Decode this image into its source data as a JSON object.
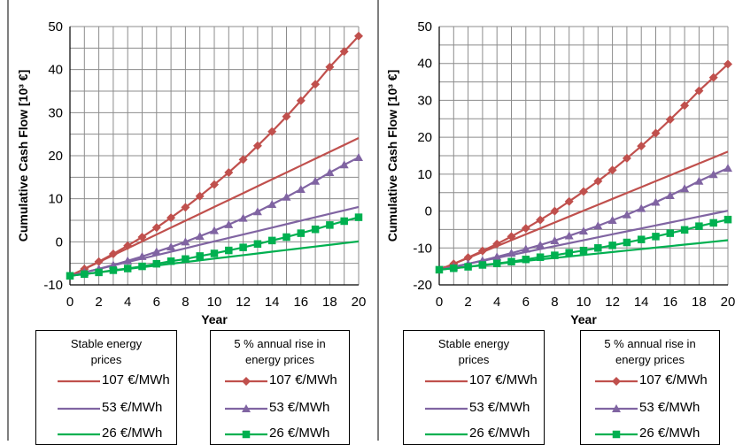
{
  "chart_data": [
    {
      "type": "line",
      "xlabel": "Year",
      "ylabel": "Cumulative Cash Flow [10³ €]",
      "xlim": [
        0,
        20
      ],
      "ylim": [
        -10,
        50
      ],
      "xticks": [
        0,
        2,
        4,
        6,
        8,
        10,
        12,
        14,
        16,
        18,
        20
      ],
      "yticks": [
        -10,
        0,
        10,
        20,
        30,
        40,
        50
      ],
      "grid": true,
      "x": [
        0,
        1,
        2,
        3,
        4,
        5,
        6,
        7,
        8,
        9,
        10,
        11,
        12,
        13,
        14,
        15,
        16,
        17,
        18,
        19,
        20
      ],
      "series": [
        {
          "name": "107 €/MWh",
          "group": "stable",
          "color": "#c0504d",
          "marker": "none",
          "values": [
            -7.9,
            -6.3,
            -4.7,
            -3.1,
            -1.5,
            0.1,
            1.7,
            3.3,
            4.9,
            6.5,
            8.1,
            9.7,
            11.3,
            12.9,
            14.5,
            16.1,
            17.7,
            19.3,
            20.9,
            22.5,
            24.1
          ]
        },
        {
          "name": "53 €/MWh",
          "group": "stable",
          "color": "#8064a2",
          "marker": "none",
          "values": [
            -7.9,
            -7.1,
            -6.3,
            -5.5,
            -4.7,
            -3.9,
            -3.1,
            -2.3,
            -1.5,
            -0.7,
            0.1,
            0.9,
            1.7,
            2.5,
            3.3,
            4.1,
            4.9,
            5.7,
            6.5,
            7.3,
            8.1
          ]
        },
        {
          "name": "26 €/MWh",
          "group": "stable",
          "color": "#00b050",
          "marker": "none",
          "values": [
            -7.9,
            -7.5,
            -7.1,
            -6.7,
            -6.3,
            -5.9,
            -5.5,
            -5.1,
            -4.7,
            -4.3,
            -3.9,
            -3.5,
            -3.1,
            -2.7,
            -2.3,
            -1.9,
            -1.5,
            -1.1,
            -0.7,
            -0.3,
            0.1
          ]
        },
        {
          "name": "107 €/MWh",
          "group": "rise",
          "color": "#c0504d",
          "marker": "diamond",
          "values": [
            -7.9,
            -6.3,
            -4.6,
            -2.8,
            -0.9,
            1.1,
            3.3,
            5.6,
            8.0,
            10.6,
            13.3,
            16.1,
            19.1,
            22.3,
            25.6,
            29.1,
            32.8,
            36.6,
            40.6,
            44.2,
            47.8
          ]
        },
        {
          "name": "53 €/MWh",
          "group": "rise",
          "color": "#8064a2",
          "marker": "triangle",
          "values": [
            -7.9,
            -7.1,
            -6.3,
            -5.4,
            -4.4,
            -3.4,
            -2.3,
            -1.2,
            0.0,
            1.3,
            2.6,
            4.0,
            5.5,
            7.0,
            8.7,
            10.4,
            12.2,
            14.1,
            16.1,
            17.9,
            19.6
          ]
        },
        {
          "name": "26 €/MWh",
          "group": "rise",
          "color": "#00b050",
          "marker": "square",
          "values": [
            -7.9,
            -7.5,
            -7.1,
            -6.6,
            -6.2,
            -5.7,
            -5.1,
            -4.5,
            -4.0,
            -3.3,
            -2.7,
            -2.0,
            -1.3,
            -0.5,
            0.3,
            1.1,
            2.0,
            2.9,
            3.9,
            4.8,
            5.7
          ]
        }
      ]
    },
    {
      "type": "line",
      "xlabel": "Year",
      "ylabel": "Cumulative Cash Flow [10³ €]",
      "xlim": [
        0,
        20
      ],
      "ylim": [
        -20,
        50
      ],
      "xticks": [
        0,
        2,
        4,
        6,
        8,
        10,
        12,
        14,
        16,
        18,
        20
      ],
      "yticks": [
        -20,
        -10,
        0,
        10,
        20,
        30,
        40,
        50
      ],
      "grid": true,
      "x": [
        0,
        1,
        2,
        3,
        4,
        5,
        6,
        7,
        8,
        9,
        10,
        11,
        12,
        13,
        14,
        15,
        16,
        17,
        18,
        19,
        20
      ],
      "series": [
        {
          "name": "107 €/MWh",
          "group": "stable",
          "color": "#c0504d",
          "marker": "none",
          "values": [
            -15.9,
            -14.3,
            -12.7,
            -11.1,
            -9.5,
            -7.9,
            -6.3,
            -4.7,
            -3.1,
            -1.5,
            0.1,
            1.7,
            3.3,
            4.9,
            6.5,
            8.1,
            9.7,
            11.3,
            12.9,
            14.5,
            16.1
          ]
        },
        {
          "name": "53 €/MWh",
          "group": "stable",
          "color": "#8064a2",
          "marker": "none",
          "values": [
            -15.9,
            -15.1,
            -14.3,
            -13.5,
            -12.7,
            -11.9,
            -11.1,
            -10.3,
            -9.5,
            -8.7,
            -7.9,
            -7.1,
            -6.3,
            -5.5,
            -4.7,
            -3.9,
            -3.1,
            -2.3,
            -1.5,
            -0.7,
            0.1
          ]
        },
        {
          "name": "26 €/MWh",
          "group": "stable",
          "color": "#00b050",
          "marker": "none",
          "values": [
            -15.9,
            -15.5,
            -15.1,
            -14.7,
            -14.3,
            -13.9,
            -13.5,
            -13.1,
            -12.7,
            -12.3,
            -11.9,
            -11.5,
            -11.1,
            -10.7,
            -10.3,
            -9.9,
            -9.5,
            -9.1,
            -8.7,
            -8.3,
            -7.9
          ]
        },
        {
          "name": "107 €/MWh",
          "group": "rise",
          "color": "#c0504d",
          "marker": "diamond",
          "values": [
            -15.9,
            -14.3,
            -12.6,
            -10.8,
            -8.9,
            -6.9,
            -4.7,
            -2.4,
            0.0,
            2.6,
            5.3,
            8.1,
            11.1,
            14.3,
            17.6,
            21.1,
            24.8,
            28.6,
            32.6,
            36.2,
            39.8
          ]
        },
        {
          "name": "53 €/MWh",
          "group": "rise",
          "color": "#8064a2",
          "marker": "triangle",
          "values": [
            -15.9,
            -15.1,
            -14.3,
            -13.4,
            -12.4,
            -11.4,
            -10.3,
            -9.2,
            -8.0,
            -6.7,
            -5.4,
            -4.0,
            -2.5,
            -1.0,
            0.7,
            2.4,
            4.2,
            6.1,
            8.1,
            9.9,
            11.6
          ]
        },
        {
          "name": "26 €/MWh",
          "group": "rise",
          "color": "#00b050",
          "marker": "square",
          "values": [
            -15.9,
            -15.5,
            -15.1,
            -14.6,
            -14.2,
            -13.7,
            -13.1,
            -12.5,
            -12.0,
            -11.3,
            -10.7,
            -10.0,
            -9.3,
            -8.5,
            -7.7,
            -6.9,
            -6.0,
            -5.1,
            -4.1,
            -3.2,
            -2.3
          ]
        }
      ]
    }
  ],
  "legend": {
    "stable_title": "Stable energy\nprices",
    "rise_title": "5 % annual rise in\nenergy prices",
    "items": [
      "107 €/MWh",
      "53 €/MWh",
      "26 €/MWh"
    ]
  },
  "colors": {
    "red": "#c0504d",
    "purple": "#8064a2",
    "green": "#00b050",
    "grid": "#8c8c8c"
  }
}
